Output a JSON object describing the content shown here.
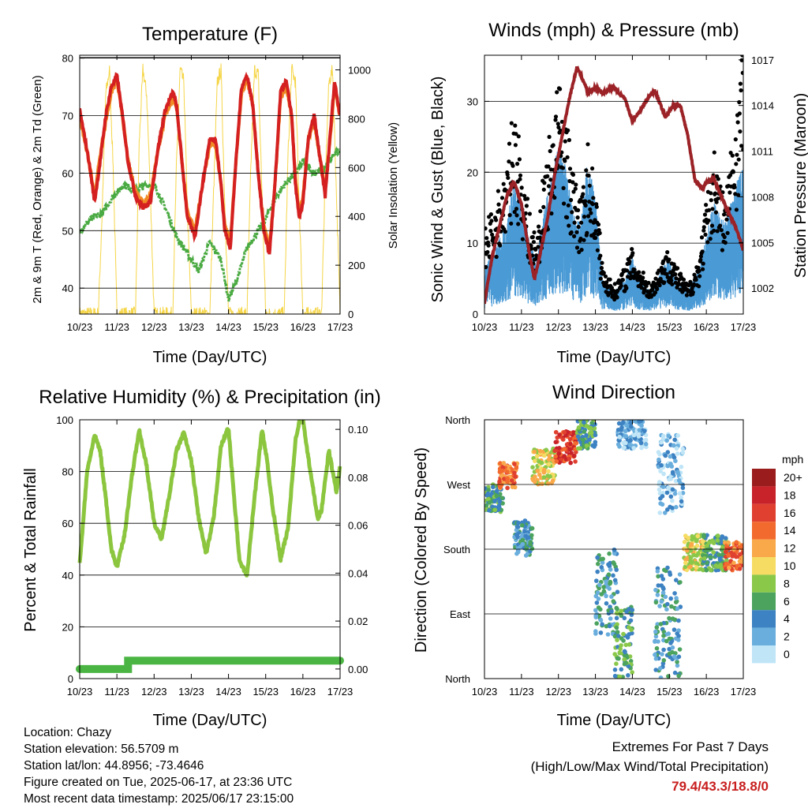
{
  "charts": {
    "temperature": {
      "title": "Temperature (F)",
      "ylabel_left": "2m & 9m T (Red, Orange) & 2m Td (Green)",
      "ylabel_right": "Solar Insolation (Yellow)",
      "xlabel": "Time (Day/UTC)"
    },
    "winds": {
      "title": "Winds (mph) & Pressure (mb)",
      "ylabel_left": "Sonic Wind & Gust (Blue, Black)",
      "ylabel_right": "Station Pressure (Maroon)",
      "xlabel": "Time (Day/UTC)"
    },
    "humidity": {
      "title": "Relative Humidity (%) & Precipitation (in)",
      "ylabel_left": "Percent & Total Rainfall",
      "xlabel": "Time (Day/UTC)"
    },
    "direction": {
      "title": "Wind Direction",
      "ylabel_left": "Direction (Colored By Speed)",
      "xlabel": "Time (Day/UTC)",
      "legend_title": "mph"
    }
  },
  "info": {
    "location": "Location: Chazy",
    "elevation": "Station elevation: 56.5709 m",
    "latlon": "Station lat/lon: 44.8956; -73.4646",
    "created": "Figure created on Tue, 2025-06-17, at 23:36 UTC",
    "recent": "Most recent data timestamp: 2025/06/17 23:15:00"
  },
  "extremes": {
    "line1": "Extremes For Past 7 Days",
    "line2": "(High/Low/Max Wind/Total Precipitation)",
    "values": "79.4/43.3/18.8/0"
  },
  "colors": {
    "temp2m": "#d42020",
    "temp9m": "#f08a24",
    "dewpoint": "#4aaa42",
    "solar": "#f5d547",
    "wind": "#4a9ad6",
    "gust": "#000000",
    "pressure": "#9b2226",
    "rh": "#8cc63f",
    "precip": "#4bb543"
  },
  "chart_data": [
    {
      "type": "line",
      "title": "Temperature (F)",
      "x_ticks": [
        "10/23",
        "11/23",
        "12/23",
        "13/23",
        "14/23",
        "15/23",
        "16/23",
        "17/23"
      ],
      "y_ticks_left": [
        "40",
        "50",
        "60",
        "70",
        "80"
      ],
      "y_ticks_right": [
        "0",
        "200",
        "400",
        "600",
        "800",
        "1000"
      ],
      "ylim_left": [
        35.5,
        80.5
      ],
      "ylim_right": [
        0,
        1060
      ],
      "xlim": [
        0,
        7
      ],
      "series": [
        {
          "name": "2m T",
          "axis": "left",
          "x": [
            0,
            0.25,
            0.4,
            0.55,
            0.7,
            0.85,
            1.0,
            1.15,
            1.3,
            1.5,
            1.7,
            1.9,
            2.1,
            2.3,
            2.5,
            2.6,
            2.75,
            2.9,
            3.1,
            3.3,
            3.5,
            3.65,
            3.8,
            3.9,
            4.05,
            4.2,
            4.35,
            4.5,
            4.65,
            4.8,
            4.95,
            5.1,
            5.25,
            5.4,
            5.55,
            5.7,
            5.8,
            5.9,
            6.0,
            6.15,
            6.3,
            6.45,
            6.6,
            6.75,
            6.85,
            7.0
          ],
          "y": [
            71,
            62,
            55,
            62,
            70,
            75,
            77,
            70,
            62,
            56,
            54,
            55,
            64,
            71,
            74,
            72,
            62,
            52,
            49,
            58,
            66,
            66,
            58,
            50,
            47,
            62,
            75,
            77,
            72,
            60,
            50,
            46,
            58,
            74,
            76,
            70,
            58,
            52,
            55,
            66,
            70,
            63,
            56,
            68,
            76,
            70
          ]
        },
        {
          "name": "9m T",
          "axis": "left",
          "x": [
            0,
            0.25,
            0.4,
            0.55,
            0.7,
            0.85,
            1.0,
            1.15,
            1.3,
            1.5,
            1.7,
            1.9,
            2.1,
            2.3,
            2.5,
            2.6,
            2.75,
            2.9,
            3.1,
            3.3,
            3.5,
            3.65,
            3.8,
            3.9,
            4.05,
            4.2,
            4.35,
            4.5,
            4.65,
            4.8,
            4.95,
            5.1,
            5.25,
            5.4,
            5.55,
            5.7,
            5.8,
            5.9,
            6.0,
            6.15,
            6.3,
            6.45,
            6.6,
            6.75,
            6.85,
            7.0
          ],
          "y": [
            70,
            62,
            56,
            63,
            69,
            74,
            76,
            70,
            62,
            57,
            55,
            56,
            64,
            70,
            73,
            72,
            62,
            53,
            50,
            58,
            65,
            65,
            58,
            51,
            48,
            62,
            74,
            76,
            72,
            60,
            51,
            47,
            58,
            73,
            75,
            70,
            59,
            53,
            56,
            66,
            69,
            63,
            57,
            67,
            75,
            70
          ]
        },
        {
          "name": "2m Td",
          "axis": "left",
          "x": [
            0,
            0.3,
            0.6,
            0.9,
            1.2,
            1.5,
            1.8,
            2.0,
            2.3,
            2.6,
            2.9,
            3.2,
            3.5,
            3.8,
            4.0,
            4.2,
            4.5,
            4.8,
            5.0,
            5.2,
            5.5,
            5.8,
            6.0,
            6.3,
            6.6,
            6.8,
            7.0
          ],
          "y": [
            50,
            52,
            53,
            56,
            58,
            57,
            58,
            58,
            54,
            49,
            46,
            43,
            48,
            45,
            38,
            41,
            47,
            50,
            52,
            55,
            58,
            60,
            62,
            60,
            61,
            63,
            64
          ]
        },
        {
          "name": "Solar",
          "axis": "right",
          "x": [
            0,
            0.5,
            0.6,
            0.7,
            0.8,
            0.9,
            1.0,
            1.5,
            1.6,
            1.7,
            1.8,
            1.9,
            2.0,
            2.5,
            2.6,
            2.7,
            2.8,
            2.9,
            3.0,
            3.5,
            3.6,
            3.7,
            3.8,
            3.9,
            4.0,
            4.5,
            4.6,
            4.7,
            4.8,
            4.9,
            5.0,
            5.5,
            5.6,
            5.7,
            5.8,
            5.9,
            6.0,
            6.5,
            6.6,
            6.7,
            6.8,
            6.9,
            7.0
          ],
          "y": [
            0,
            0,
            400,
            900,
            1000,
            600,
            0,
            0,
            700,
            1000,
            900,
            500,
            0,
            0,
            600,
            1000,
            950,
            400,
            0,
            0,
            500,
            950,
            1000,
            450,
            0,
            0,
            600,
            1000,
            980,
            500,
            0,
            0,
            650,
            1000,
            950,
            450,
            0,
            0,
            550,
            950,
            1000,
            500,
            0
          ]
        }
      ]
    },
    {
      "type": "line",
      "title": "Winds (mph) & Pressure (mb)",
      "x_ticks": [
        "10/23",
        "11/23",
        "12/23",
        "13/23",
        "14/23",
        "15/23",
        "16/23",
        "17/23"
      ],
      "y_ticks_left": [
        "0",
        "10",
        "20",
        "30"
      ],
      "y_ticks_right": [
        "1002",
        "1005",
        "1008",
        "1011",
        "1014",
        "1017"
      ],
      "ylim_left": [
        0,
        36.5
      ],
      "ylim_right": [
        1000.3,
        1017.3
      ],
      "xlim": [
        0,
        7
      ],
      "series": [
        {
          "name": "Wind",
          "axis": "left",
          "x": [
            0,
            0.3,
            0.6,
            0.8,
            1.0,
            1.2,
            1.4,
            1.6,
            1.8,
            2.0,
            2.2,
            2.4,
            2.6,
            2.8,
            3.0,
            3.2,
            3.5,
            3.8,
            4.0,
            4.2,
            4.5,
            4.8,
            5.0,
            5.2,
            5.5,
            5.8,
            6.0,
            6.2,
            6.5,
            6.8,
            7.0
          ],
          "y": [
            4,
            6,
            8,
            12,
            10,
            7,
            5,
            9,
            12,
            15,
            13,
            9,
            8,
            14,
            10,
            3,
            2,
            3,
            5,
            3,
            2,
            4,
            5,
            3,
            2,
            4,
            7,
            10,
            8,
            12,
            13
          ]
        },
        {
          "name": "Gust",
          "axis": "left",
          "x": [
            0,
            0.3,
            0.6,
            0.8,
            1.0,
            1.2,
            1.4,
            1.6,
            1.8,
            2.0,
            2.2,
            2.4,
            2.6,
            2.8,
            3.0,
            3.2,
            3.5,
            3.8,
            4.0,
            4.2,
            4.5,
            4.8,
            5.0,
            5.2,
            5.5,
            5.8,
            6.0,
            6.2,
            6.5,
            6.8,
            7.0
          ],
          "y": [
            9,
            12,
            16,
            22,
            17,
            11,
            8,
            15,
            20,
            25,
            21,
            15,
            12,
            18,
            14,
            5,
            3,
            5,
            7,
            5,
            3,
            6,
            7,
            5,
            3,
            6,
            12,
            18,
            12,
            22,
            30
          ]
        },
        {
          "name": "Pressure",
          "axis": "right",
          "x": [
            0,
            0.2,
            0.4,
            0.6,
            0.8,
            1.0,
            1.2,
            1.35,
            1.5,
            1.7,
            1.9,
            2.1,
            2.3,
            2.5,
            2.7,
            2.8,
            3.0,
            3.2,
            3.5,
            3.8,
            4.0,
            4.2,
            4.4,
            4.6,
            4.9,
            5.1,
            5.3,
            5.5,
            5.7,
            5.9,
            6.0,
            6.2,
            6.5,
            6.8,
            7.0
          ],
          "y": [
            1001,
            1004,
            1006,
            1008,
            1009,
            1007.5,
            1004.5,
            1002.6,
            1004.2,
            1006.5,
            1009.5,
            1012,
            1014.5,
            1016.5,
            1015.5,
            1014.8,
            1015.2,
            1014.8,
            1015.2,
            1014.4,
            1013,
            1013.6,
            1014.4,
            1015,
            1013.2,
            1014,
            1014,
            1012,
            1009,
            1008.6,
            1008.9,
            1009.2,
            1007.5,
            1006,
            1004.5
          ]
        }
      ]
    },
    {
      "type": "line",
      "title": "Relative Humidity (%) & Precipitation (in)",
      "x_ticks": [
        "10/23",
        "11/23",
        "12/23",
        "13/23",
        "14/23",
        "15/23",
        "16/23",
        "17/23"
      ],
      "y_ticks_left": [
        "0",
        "20",
        "40",
        "60",
        "80",
        "100"
      ],
      "y_ticks_right": [
        "0.00",
        "0.02",
        "0.04",
        "0.06",
        "0.08",
        "0.10"
      ],
      "ylim_left": [
        0,
        100
      ],
      "ylim_right": [
        -0.004,
        0.104
      ],
      "xlim": [
        0,
        7
      ],
      "series": [
        {
          "name": "RH",
          "axis": "left",
          "x": [
            0,
            0.2,
            0.4,
            0.55,
            0.7,
            0.85,
            1.0,
            1.2,
            1.4,
            1.6,
            1.8,
            2.0,
            2.2,
            2.4,
            2.6,
            2.8,
            3.0,
            3.2,
            3.4,
            3.6,
            3.8,
            4.0,
            4.15,
            4.3,
            4.5,
            4.7,
            4.9,
            5.0,
            5.2,
            5.4,
            5.6,
            5.8,
            5.9,
            6.0,
            6.2,
            6.4,
            6.5,
            6.7,
            6.9,
            7.0
          ],
          "y": [
            44,
            80,
            94,
            88,
            70,
            50,
            43,
            55,
            78,
            96,
            82,
            60,
            54,
            70,
            88,
            95,
            84,
            62,
            48,
            62,
            90,
            97,
            70,
            45,
            40,
            70,
            96,
            88,
            65,
            46,
            58,
            92,
            99,
            100,
            80,
            62,
            65,
            88,
            72,
            82
          ]
        },
        {
          "name": "Precipitation",
          "axis": "right",
          "x": [
            0,
            0.5,
            1.0,
            1.3,
            1.3,
            2,
            3,
            4,
            5,
            6,
            7
          ],
          "y": [
            0,
            0,
            0,
            0,
            0.0035,
            0.0035,
            0.0035,
            0.0035,
            0.0035,
            0.0035,
            0.0035
          ]
        }
      ]
    },
    {
      "type": "scatter",
      "title": "Wind Direction",
      "x_ticks": [
        "10/23",
        "11/23",
        "12/23",
        "13/23",
        "14/23",
        "15/23",
        "16/23",
        "17/23"
      ],
      "y_ticks": [
        "North",
        "East",
        "South",
        "West",
        "North"
      ],
      "ylim": [
        0,
        360
      ],
      "xlim": [
        0,
        7
      ],
      "colorbar": {
        "title": "mph",
        "labels": [
          "20+",
          "18",
          "16",
          "14",
          "12",
          "10",
          "8",
          "6",
          "4",
          "2",
          "0"
        ],
        "colors": [
          "#9b1c1c",
          "#c8232a",
          "#e0402f",
          "#f26a2e",
          "#f9a84a",
          "#f6dc63",
          "#8ac84a",
          "#4ba35e",
          "#3d82c2",
          "#6aaedd",
          "#bfe5f7"
        ]
      },
      "clusters": [
        {
          "x": [
            0,
            0.5
          ],
          "y": [
            230,
            270
          ],
          "speed": 6
        },
        {
          "x": [
            0.4,
            0.9
          ],
          "y": [
            265,
            300
          ],
          "speed": 14
        },
        {
          "x": [
            0.8,
            1.3
          ],
          "y": [
            170,
            220
          ],
          "speed": 4
        },
        {
          "x": [
            1.3,
            1.9
          ],
          "y": [
            270,
            320
          ],
          "speed": 10
        },
        {
          "x": [
            1.9,
            2.5
          ],
          "y": [
            300,
            345
          ],
          "speed": 16
        },
        {
          "x": [
            2.5,
            3.0
          ],
          "y": [
            320,
            360
          ],
          "speed": 6
        },
        {
          "x": [
            3.0,
            3.6
          ],
          "y": [
            60,
            180
          ],
          "speed": 4
        },
        {
          "x": [
            3.5,
            4.0
          ],
          "y": [
            0,
            100
          ],
          "speed": 6
        },
        {
          "x": [
            3.6,
            4.4
          ],
          "y": [
            320,
            360
          ],
          "speed": 2
        },
        {
          "x": [
            4.6,
            5.3
          ],
          "y": [
            0,
            160
          ],
          "speed": 4
        },
        {
          "x": [
            4.7,
            5.4
          ],
          "y": [
            230,
            340
          ],
          "speed": 2
        },
        {
          "x": [
            5.4,
            6.0
          ],
          "y": [
            150,
            200
          ],
          "speed": 10
        },
        {
          "x": [
            5.9,
            6.6
          ],
          "y": [
            150,
            200
          ],
          "speed": 6
        },
        {
          "x": [
            6.5,
            7.0
          ],
          "y": [
            150,
            190
          ],
          "speed": 14
        }
      ]
    }
  ]
}
